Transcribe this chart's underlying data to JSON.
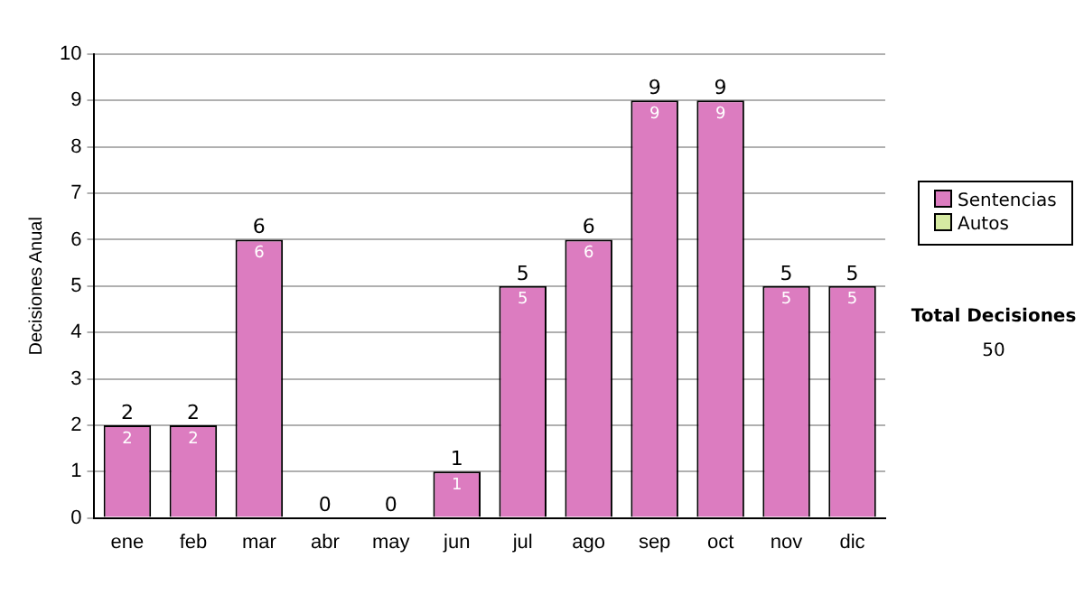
{
  "chart_data": {
    "type": "bar",
    "stacked": true,
    "ylabel": "Decisiones Anual",
    "categories": [
      "ene",
      "feb",
      "mar",
      "abr",
      "may",
      "jun",
      "jul",
      "ago",
      "sep",
      "oct",
      "nov",
      "dic"
    ],
    "series": [
      {
        "name": "Sentencias",
        "color": "#dc7cc0",
        "values": [
          2,
          2,
          6,
          0,
          0,
          1,
          5,
          6,
          9,
          9,
          5,
          5
        ],
        "value_labels": [
          "2",
          "2",
          "6",
          null,
          null,
          "1",
          "5",
          "6",
          "9",
          "9",
          "5",
          "5"
        ]
      },
      {
        "name": "Autos",
        "color": "#d6eaa2",
        "values": [
          0,
          0,
          0,
          0,
          0,
          0,
          0,
          0,
          0,
          0,
          0,
          0
        ]
      }
    ],
    "totals": [
      "2",
      "2",
      "6",
      "0",
      "0",
      "1",
      "5",
      "6",
      "9",
      "9",
      "5",
      "5"
    ],
    "ylim": [
      0,
      10
    ],
    "yticks": [
      0,
      1,
      2,
      3,
      4,
      5,
      6,
      7,
      8,
      9,
      10
    ],
    "grid": "y",
    "legend": "right",
    "annotations": [
      "Total Decisiones",
      "50"
    ]
  }
}
